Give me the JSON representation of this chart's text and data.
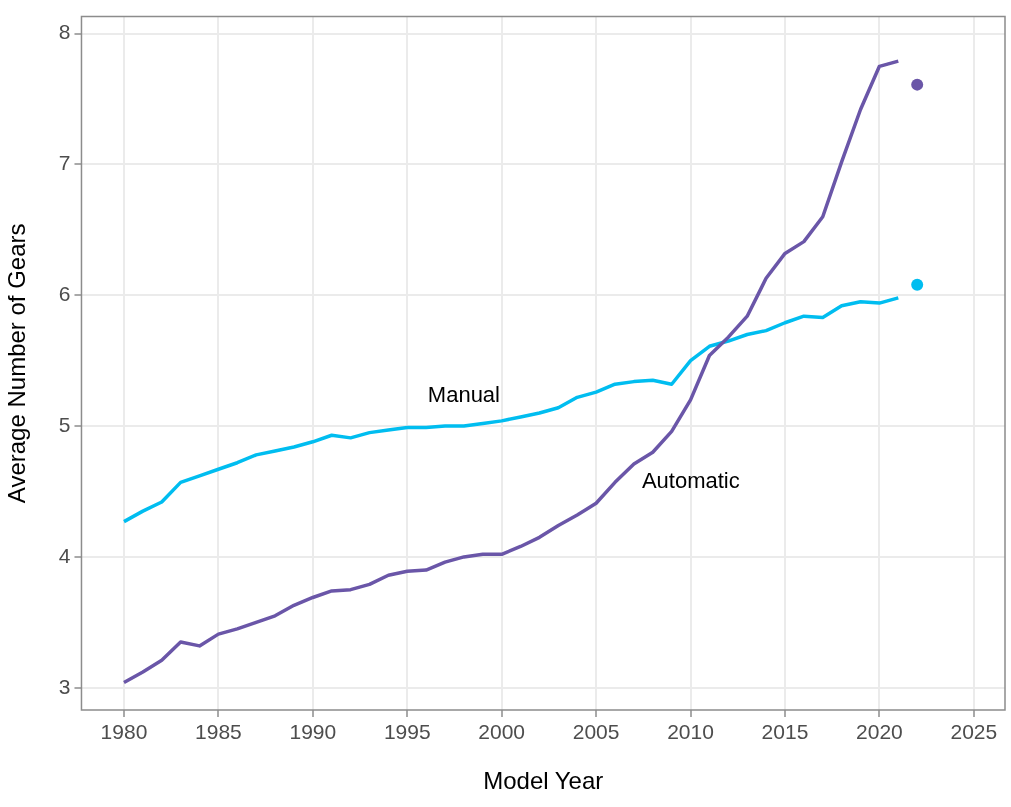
{
  "chart_data": {
    "type": "line",
    "xlabel": "Model Year",
    "ylabel": "Average Number of Gears",
    "xlim": [
      1977.75,
      2026.65
    ],
    "ylim": [
      2.83,
      8.13
    ],
    "xticks": [
      1980,
      1985,
      1990,
      1995,
      2000,
      2005,
      2010,
      2015,
      2020,
      2025
    ],
    "yticks": [
      3,
      4,
      5,
      6,
      7,
      8
    ],
    "grid": true,
    "legend": false,
    "line_style": "solid",
    "series": [
      {
        "name": "Automatic",
        "type": "line",
        "color": "#6a56a8",
        "x": [
          1980,
          1981,
          1982,
          1983,
          1984,
          1985,
          1986,
          1987,
          1988,
          1989,
          1990,
          1991,
          1992,
          1993,
          1994,
          1995,
          1996,
          1997,
          1998,
          1999,
          2000,
          2001,
          2002,
          2003,
          2004,
          2005,
          2006,
          2007,
          2008,
          2009,
          2010,
          2011,
          2012,
          2013,
          2014,
          2015,
          2016,
          2017,
          2018,
          2019,
          2020,
          2021
        ],
        "values": [
          3.04,
          3.12,
          3.21,
          3.35,
          3.32,
          3.41,
          3.45,
          3.5,
          3.55,
          3.63,
          3.69,
          3.74,
          3.75,
          3.79,
          3.86,
          3.89,
          3.9,
          3.96,
          4.0,
          4.02,
          4.02,
          4.08,
          4.15,
          4.24,
          4.32,
          4.41,
          4.57,
          4.71,
          4.8,
          4.96,
          5.2,
          5.54,
          5.68,
          5.84,
          6.13,
          6.32,
          6.41,
          6.6,
          7.02,
          7.42,
          7.75,
          7.79
        ]
      },
      {
        "name": "Manual",
        "type": "line",
        "color": "#00bdf0",
        "x": [
          1980,
          1981,
          1982,
          1983,
          1984,
          1985,
          1986,
          1987,
          1988,
          1989,
          1990,
          1991,
          1992,
          1993,
          1994,
          1995,
          1996,
          1997,
          1998,
          1999,
          2000,
          2001,
          2002,
          2003,
          2004,
          2005,
          2006,
          2007,
          2008,
          2009,
          2010,
          2011,
          2012,
          2013,
          2014,
          2015,
          2016,
          2017,
          2018,
          2019,
          2020,
          2021
        ],
        "values": [
          4.27,
          4.35,
          4.42,
          4.57,
          4.62,
          4.67,
          4.72,
          4.78,
          4.81,
          4.84,
          4.88,
          4.93,
          4.91,
          4.95,
          4.97,
          4.99,
          4.99,
          5.0,
          5.0,
          5.02,
          5.04,
          5.07,
          5.1,
          5.14,
          5.22,
          5.26,
          5.32,
          5.34,
          5.35,
          5.32,
          5.5,
          5.61,
          5.65,
          5.7,
          5.73,
          5.79,
          5.84,
          5.83,
          5.92,
          5.95,
          5.94,
          5.98
        ]
      },
      {
        "type": "scatter",
        "color": "#6a56a8",
        "x": [
          2022
        ],
        "values": [
          7.61
        ]
      },
      {
        "type": "scatter",
        "color": "#00bdf0",
        "x": [
          2022
        ],
        "values": [
          6.08
        ]
      }
    ]
  }
}
